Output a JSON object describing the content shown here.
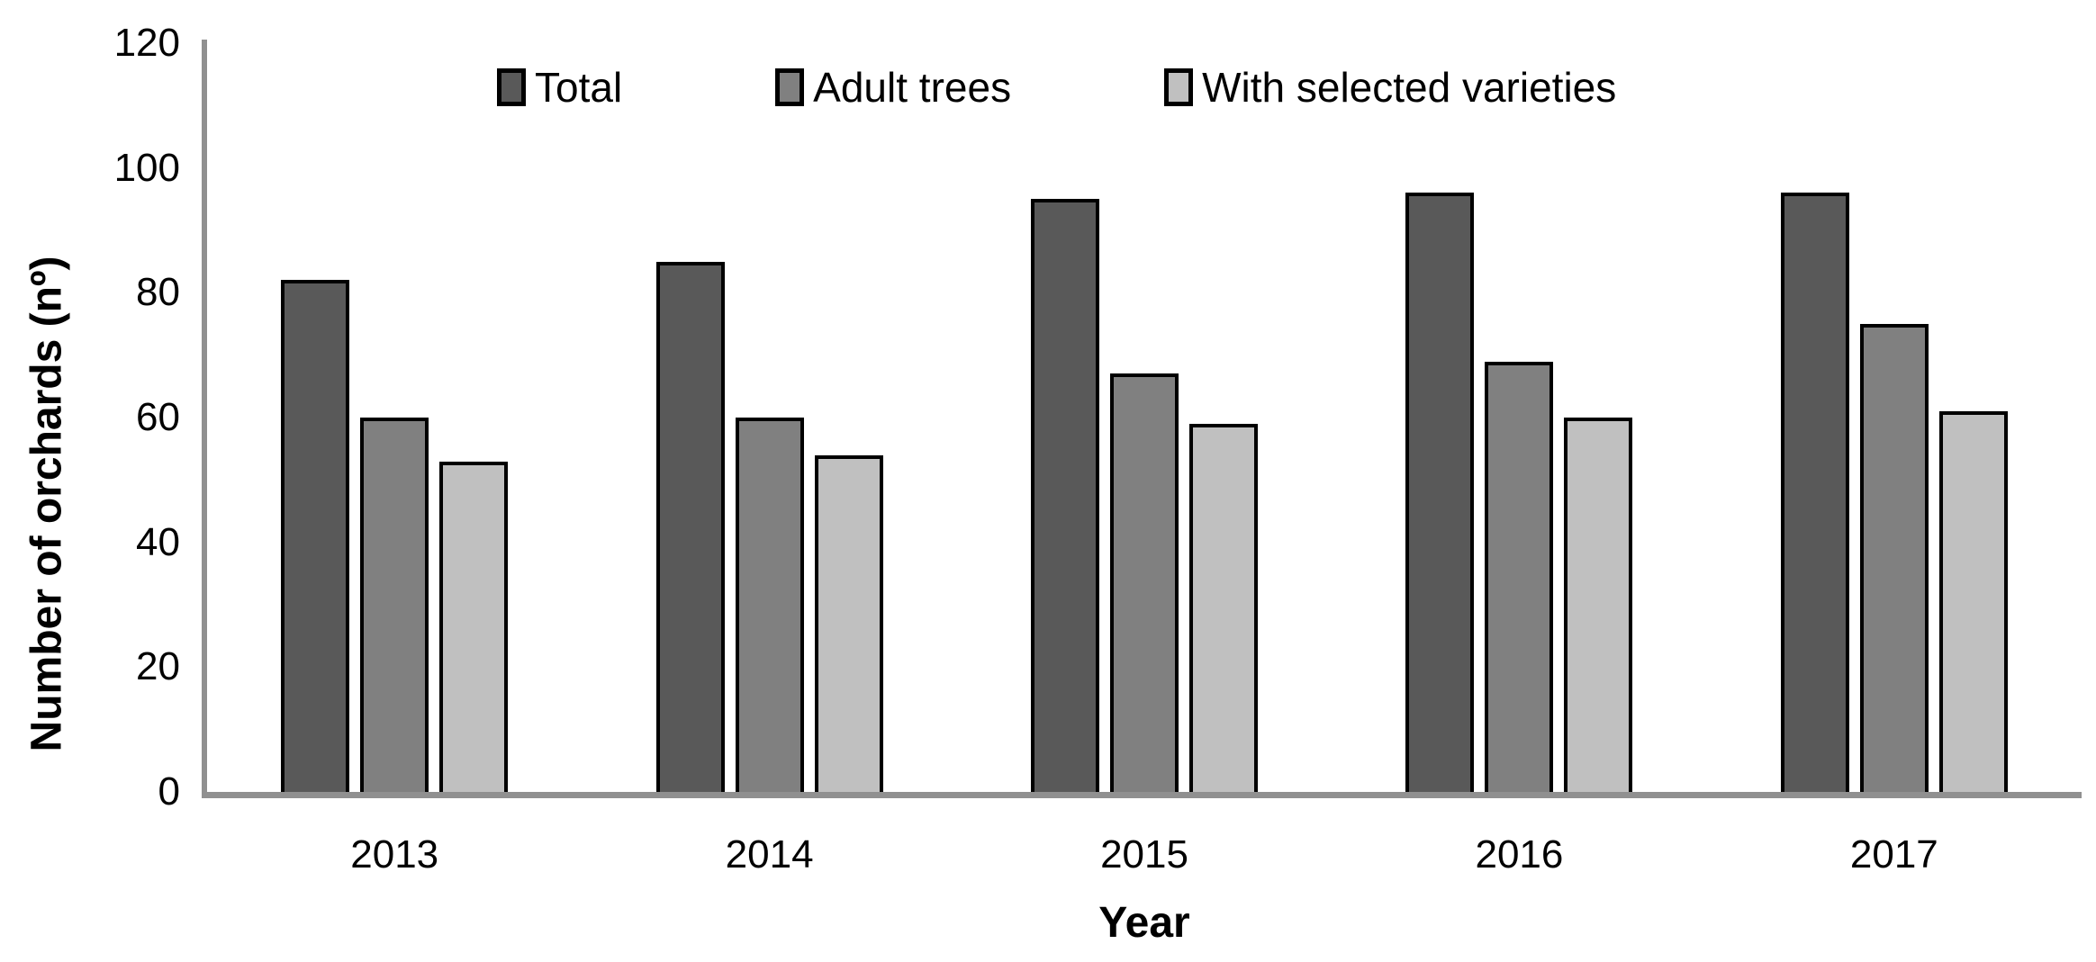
{
  "chart_data": {
    "type": "bar",
    "title": "",
    "categories": [
      "2013",
      "2014",
      "2015",
      "2016",
      "2017"
    ],
    "series": [
      {
        "name": "Total",
        "color": "#595959",
        "values": [
          82,
          85,
          95,
          96,
          96
        ]
      },
      {
        "name": "Adult trees",
        "color": "#808080",
        "values": [
          60,
          60,
          67,
          69,
          75
        ]
      },
      {
        "name": "With selected varieties",
        "color": "#c0c0c0",
        "values": [
          53,
          54,
          59,
          60,
          61
        ]
      }
    ],
    "xlabel": "Year",
    "ylabel": "Number of orchards (nº)",
    "ylim": [
      0,
      120
    ],
    "ytick_step": 20,
    "yticks": [
      0,
      20,
      40,
      60,
      80,
      100,
      120
    ],
    "legend_position": "top",
    "grid": false
  },
  "colors": {
    "axis_line": "#909090",
    "bar_border": "#000000",
    "text": "#000000",
    "background": "#ffffff"
  }
}
